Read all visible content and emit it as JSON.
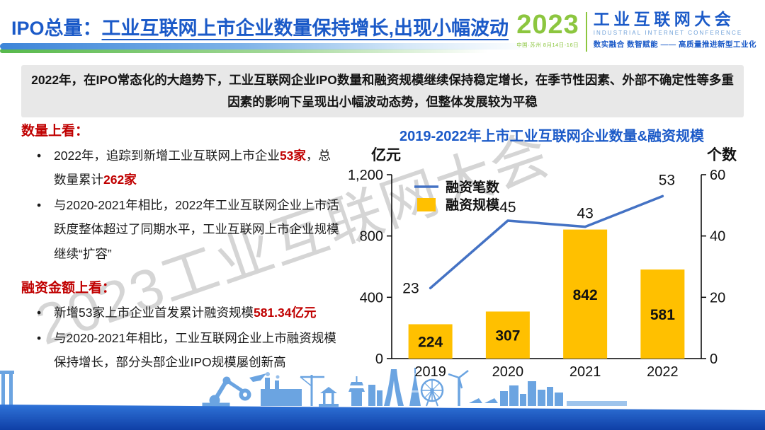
{
  "header": {
    "title_prefix": "IPO总量：",
    "title_main": "工业互联网上市企业数量保持增长,出现小幅波动",
    "logo": {
      "year": "2023",
      "venue": "中国·苏州  8月14日-16日",
      "name": "工业互联网大会",
      "name_en": "INDUSTRIAL INTERNET CONFERENCE",
      "tagline": "数实融合  数智赋能 —— 高质量推进新型工业化"
    }
  },
  "banner": {
    "text": "2022年，在IPO常态化的大趋势下，工业互联网企业IPO数量和融资规模继续保持稳定增长，在季节性因素、外部不确定性等多重因素的影响下呈现出小幅波动态势，但整体发展较为平稳"
  },
  "left_panel": {
    "section1": {
      "heading": "数量上看：",
      "bullet1": {
        "t1": "2022年，追踪到新增工业互联网上市企业",
        "h1": "53家",
        "t2": "，总数量累计",
        "h2": "262家"
      },
      "bullet2": "与2020-2021年相比，2022年工业互联网企业上市活跃度整体超过了同期水平，工业互联网上市企业规模继续“扩容”"
    },
    "section2": {
      "heading": "融资金额上看：",
      "bullet1": {
        "t1": "新增53家上市企业首发累计融资规模",
        "h1": "581.34亿元"
      },
      "bullet2": "与2020-2021年相比，工业互联网企业上市融资规模保持增长，部分头部企业IPO规模屡创新高"
    }
  },
  "watermark": "2023工业互联网大会",
  "colors": {
    "title_blue": "#1B5AC8",
    "heading_red": "#C00000",
    "bar_yellow": "#FFC000",
    "line_blue": "#4472C4",
    "banner_bg": "#E8E8E8",
    "logo_green": "#8CC63F"
  },
  "chart_data": {
    "type": "bar",
    "subtype": "bar+line dual-axis combo",
    "title": "2019-2022年上市工业互联网企业数量&融资规模",
    "categories": [
      "2019",
      "2020",
      "2021",
      "2022"
    ],
    "series": [
      {
        "name": "融资笔数",
        "type": "line",
        "axis": "right",
        "values": [
          23,
          45,
          43,
          53
        ],
        "color": "#4472C4"
      },
      {
        "name": "融资规模",
        "type": "bar",
        "axis": "left",
        "values": [
          224,
          307,
          842,
          581
        ],
        "color": "#FFC000"
      }
    ],
    "left_axis": {
      "label": "亿元",
      "min": 0,
      "max": 1200,
      "ticks": [
        0,
        400,
        800,
        1200
      ]
    },
    "right_axis": {
      "label": "个数",
      "min": 0,
      "max": 60,
      "ticks": [
        0,
        20,
        40,
        60
      ]
    },
    "legend_position": "top-left-inside",
    "grid": false
  }
}
